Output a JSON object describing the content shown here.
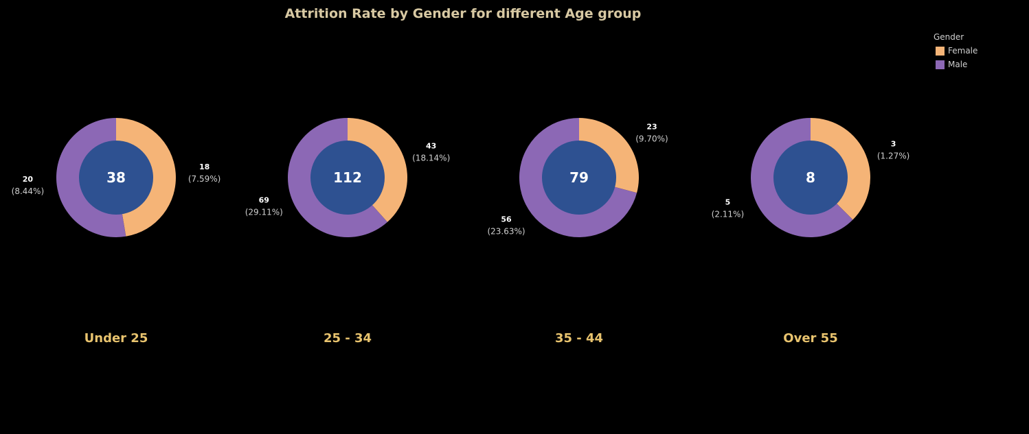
{
  "chart_data": {
    "type": "pie",
    "title": "Attrition Rate by Gender for different Age group",
    "legend": {
      "title": "Gender",
      "placement": "top-right",
      "entries": [
        {
          "name": "Female",
          "color": "#f5b477"
        },
        {
          "name": "Male",
          "color": "#8c68b5"
        }
      ]
    },
    "center_color": "#2e5191",
    "group_label_color": "#e8c36e",
    "groups": [
      {
        "label": "Under 25",
        "total": "38",
        "slices": [
          {
            "name": "Female",
            "value": 18,
            "value_label": "18",
            "percent_label": "(7.59%)"
          },
          {
            "name": "Male",
            "value": 20,
            "value_label": "20",
            "percent_label": "(8.44%)"
          }
        ]
      },
      {
        "label": "25 - 34",
        "total": "112",
        "slices": [
          {
            "name": "Female",
            "value": 43,
            "value_label": "43",
            "percent_label": "(18.14%)"
          },
          {
            "name": "Male",
            "value": 69,
            "value_label": "69",
            "percent_label": "(29.11%)"
          }
        ]
      },
      {
        "label": "35 - 44",
        "total": "79",
        "slices": [
          {
            "name": "Female",
            "value": 23,
            "value_label": "23",
            "percent_label": "(9.70%)"
          },
          {
            "name": "Male",
            "value": 56,
            "value_label": "56",
            "percent_label": "(23.63%)"
          }
        ]
      },
      {
        "label": "Over 55",
        "total": "8",
        "slices": [
          {
            "name": "Female",
            "value": 3,
            "value_label": "3",
            "percent_label": "(1.27%)"
          },
          {
            "name": "Male",
            "value": 5,
            "value_label": "5",
            "percent_label": "(2.11%)"
          }
        ]
      }
    ]
  }
}
